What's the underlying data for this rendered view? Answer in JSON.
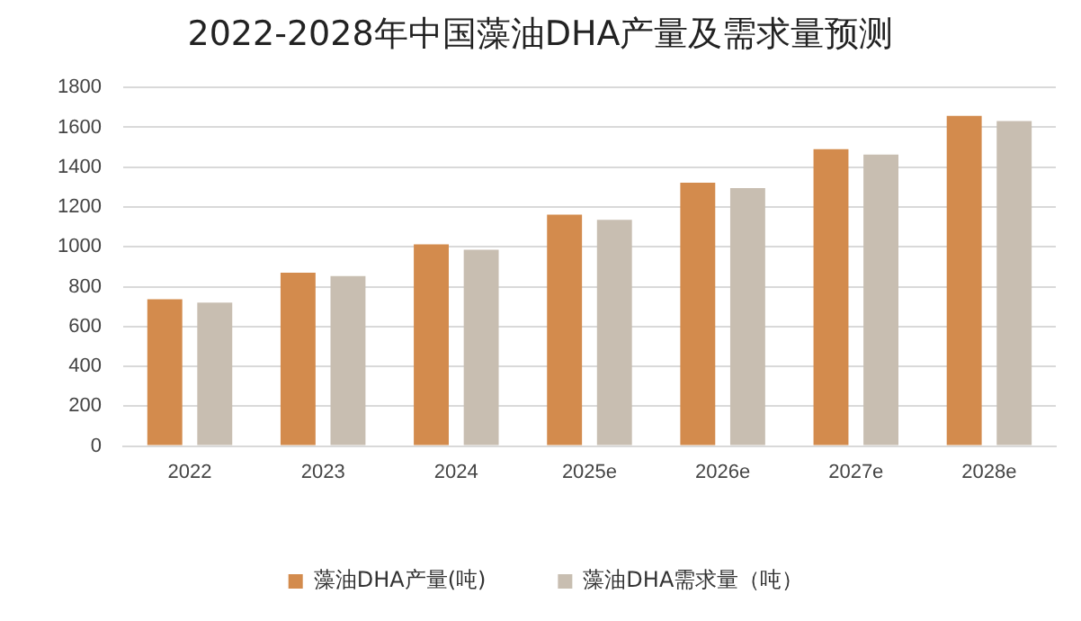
{
  "chart_data": {
    "type": "bar",
    "title": "2022-2028年中国藻油DHA产量及需求量预测",
    "categories": [
      "2022",
      "2023",
      "2024",
      "2025e",
      "2026e",
      "2027e",
      "2028e"
    ],
    "series": [
      {
        "name": "藻油DHA产量(吨)",
        "color": "#d38b4d",
        "values": [
          737,
          870,
          1012,
          1162,
          1322,
          1490,
          1658
        ]
      },
      {
        "name": "藻油DHA需求量（吨）",
        "color": "#c8beb1",
        "values": [
          720,
          853,
          985,
          1136,
          1295,
          1463,
          1631
        ]
      }
    ],
    "ylim": [
      0,
      1800
    ],
    "yticks": [
      0,
      200,
      400,
      600,
      800,
      1000,
      1200,
      1400,
      1600,
      1800
    ],
    "grid": "y",
    "legend": "bottom"
  }
}
